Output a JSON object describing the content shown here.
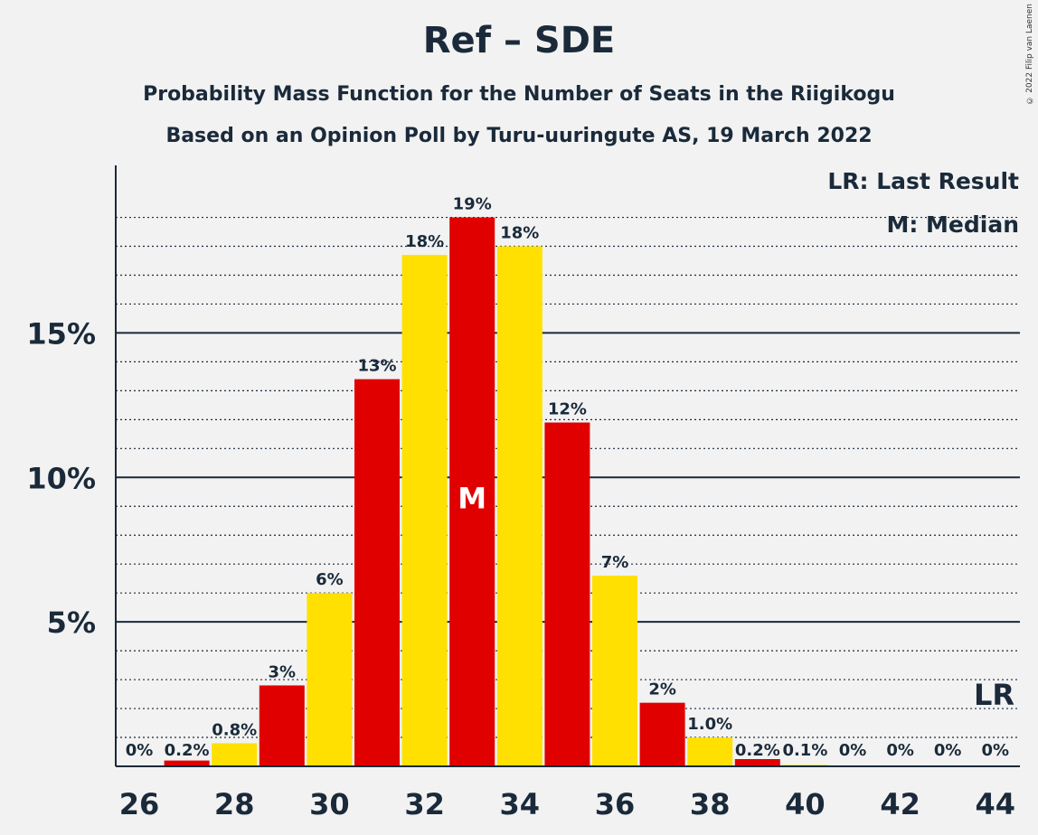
{
  "title": "Ref – SDE",
  "subtitle1": "Probability Mass Function for the Number of Seats in the Riigikogu",
  "subtitle2": "Based on an Opinion Poll by Turu-uuringute AS, 19 March 2022",
  "copyright": "© 2022 Filip van Laenen",
  "legend": {
    "lr": "LR: Last Result",
    "m": "M: Median"
  },
  "colors": {
    "red": "#e00000",
    "yellow": "#ffe000",
    "text": "#1a2a3a",
    "background": "#f2f2f2"
  },
  "chart_data": {
    "type": "bar",
    "x": [
      26,
      27,
      28,
      29,
      30,
      31,
      32,
      33,
      34,
      35,
      36,
      37,
      38,
      39,
      40,
      41,
      42,
      43,
      44
    ],
    "values": [
      0,
      0.2,
      0.8,
      2.8,
      6.0,
      13.4,
      17.7,
      19.0,
      18.0,
      11.9,
      6.6,
      2.2,
      1.0,
      0.25,
      0.05,
      0,
      0,
      0,
      0
    ],
    "labels": [
      "0%",
      "0.2%",
      "0.8%",
      "3%",
      "6%",
      "13%",
      "18%",
      "19%",
      "18%",
      "12%",
      "7%",
      "2%",
      "1.0%",
      "0.2%",
      "0.1%",
      "0%",
      "0%",
      "0%",
      "0%"
    ],
    "bar_colors": [
      "red",
      "red",
      "yellow",
      "red",
      "yellow",
      "red",
      "yellow",
      "red",
      "yellow",
      "red",
      "yellow",
      "red",
      "yellow",
      "red",
      "yellow",
      "red",
      "yellow",
      "red",
      "yellow"
    ],
    "x_ticks": [
      "26",
      "28",
      "30",
      "32",
      "34",
      "36",
      "38",
      "40",
      "42",
      "44"
    ],
    "y_ticks": [
      {
        "value": 5,
        "label": "5%"
      },
      {
        "value": 10,
        "label": "10%"
      },
      {
        "value": 15,
        "label": "15%"
      }
    ],
    "ylim": [
      0,
      20.8
    ],
    "median_seat": 33,
    "median_marker": "M",
    "last_result_seat": 44,
    "last_result_marker": "LR"
  }
}
